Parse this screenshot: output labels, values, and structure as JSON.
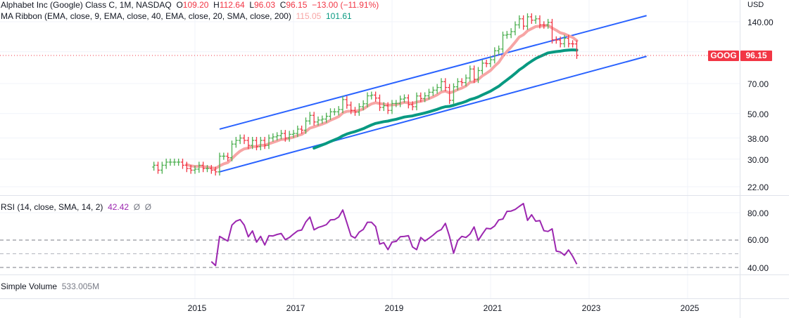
{
  "header": {
    "symbol_title": "Alphabet Inc (Google) Class C, 1M, NASDAQ",
    "open_label": "O",
    "open": "109.20",
    "high_label": "H",
    "high": "112.64",
    "low_label": "L",
    "low": "96.03",
    "close_label": "C",
    "close": "96.15",
    "change": "−13.00 (−11.91%)"
  },
  "ma_ribbon": {
    "label": "MA Ribbon (EMA, close, 9, EMA, close, 40, EMA, close, 20, SMA, close, 200)",
    "value1": "115.05",
    "value2": "101.61"
  },
  "rsi_legend": {
    "label": "RSI (14, close, SMA, 14, 2)",
    "value": "42.42",
    "extra1": "Ø",
    "extra2": "Ø"
  },
  "volume_legend": {
    "label": "Simple Volume",
    "value": "533.005M"
  },
  "price_axis": {
    "currency": "USD",
    "ticks": [
      "140.00",
      "70.00",
      "50.00",
      "38.00",
      "30.00",
      "22.00"
    ]
  },
  "rsi_axis": {
    "ticks": [
      "80.00",
      "60.00",
      "40.00"
    ]
  },
  "time_axis": {
    "ticks": [
      "2015",
      "2017",
      "2019",
      "2021",
      "2023",
      "2025"
    ]
  },
  "last_price_badge": {
    "symbol": "GOOG",
    "price": "96.15"
  },
  "colors": {
    "up": "#4caf50",
    "down": "#f23645",
    "ema_fast": "#f7a5a5",
    "ema_slow": "#089981",
    "rsi": "#9c27b0",
    "trendline": "#2962ff"
  },
  "chart_data": [
    {
      "type": "ohlc",
      "scale": "log",
      "ylim": [
        20,
        160
      ],
      "start_month": "2014-03",
      "end_month": "2022-10",
      "close": [
        28,
        26.5,
        28,
        29,
        29,
        29,
        29,
        28,
        27,
        26.5,
        26.8,
        28,
        27,
        27,
        26.5,
        26,
        31,
        31,
        30.5,
        35.5,
        37,
        38,
        37,
        35,
        37,
        34.5,
        37,
        35,
        38,
        38.5,
        39,
        40,
        38,
        39.6,
        40,
        42,
        41.5,
        46,
        49,
        45.5,
        46.5,
        47,
        48.5,
        51,
        51,
        52.3,
        58.5,
        55,
        51.8,
        50.8,
        54,
        55.8,
        61,
        61.5,
        59.5,
        53.6,
        54.6,
        51.8,
        56,
        56,
        58.8,
        59.6,
        55.2,
        54,
        60.9,
        59.2,
        61,
        63.5,
        65,
        67,
        71.5,
        67,
        58,
        67.5,
        71.5,
        70.8,
        74.5,
        82.4,
        73.4,
        81,
        88,
        87.6,
        91.4,
        101.1,
        103.1,
        120.5,
        121.4,
        125.3,
        135.2,
        144.7,
        133.3,
        148,
        142.5,
        144.7,
        135.3,
        134.9,
        139,
        114.3,
        114,
        109.4,
        116.3,
        109.4,
        109.2,
        96.15
      ],
      "overlays": [
        "EMA 9",
        "EMA 40"
      ],
      "trendlines": [
        {
          "from": [
            "2015-07",
            42
          ],
          "to": [
            "2024-03",
            150
          ]
        },
        {
          "from": [
            "2015-07",
            26
          ],
          "to": [
            "2024-03",
            95
          ]
        }
      ]
    },
    {
      "type": "line",
      "series": "RSI",
      "ylim": [
        35,
        92
      ],
      "bands": [
        40,
        50,
        60
      ],
      "end_month": "2022-10",
      "values": [
        44.3,
        41.4,
        62.7,
        61,
        59.3,
        70.9,
        73.8,
        75,
        71,
        62.4,
        66.7,
        58.5,
        62.7,
        56.4,
        63.2,
        63,
        64.1,
        64.8,
        60.3,
        61.9,
        64.4,
        66.7,
        67.4,
        73.3,
        76.8,
        67.5,
        69.2,
        70.1,
        71.3,
        74.7,
        75,
        76.8,
        82,
        72.7,
        63.1,
        61.5,
        65.8,
        67.8,
        73,
        73,
        69.9,
        57.1,
        58.1,
        53,
        58.5,
        59,
        62.4,
        62.7,
        63.2,
        55,
        53,
        61.9,
        59.3,
        61.4,
        63.6,
        66.2,
        67.7,
        72.2,
        62.7,
        50.4,
        59.6,
        62.7,
        61.9,
        64.4,
        69.6,
        59.8,
        64.4,
        68.6,
        68.2,
        70.3,
        74.7,
        75.4,
        81,
        81.2,
        82.4,
        84.6,
        86.7,
        74.4,
        78.5,
        73.8,
        74.2,
        66.8,
        66.3,
        68.2,
        52,
        51.3,
        48.9,
        52.8,
        48.2,
        42.4
      ]
    }
  ]
}
